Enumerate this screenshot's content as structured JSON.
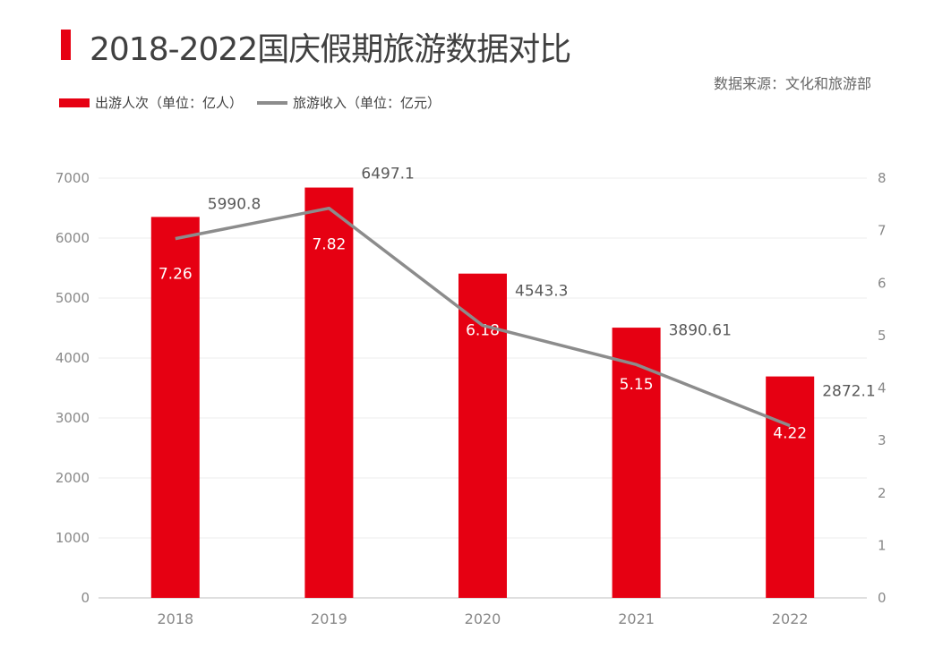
{
  "chart_data": {
    "type": "bar+line",
    "title": "2018-2022国庆假期旅游数据对比",
    "source": "数据来源：文化和旅游部",
    "categories": [
      "2018",
      "2019",
      "2020",
      "2021",
      "2022"
    ],
    "series": [
      {
        "name": "出游人次（单位：亿人）",
        "type": "bar",
        "axis": "right",
        "color": "#e60012",
        "values": [
          7.26,
          7.82,
          6.18,
          5.15,
          4.22
        ],
        "labels": [
          "7.26",
          "7.82",
          "6.18",
          "5.15",
          "4.22"
        ]
      },
      {
        "name": "旅游收入（单位：亿元）",
        "type": "line",
        "axis": "left",
        "color": "#8c8c8c",
        "values": [
          5990.8,
          6497.1,
          4543.3,
          3890.61,
          2872.1
        ],
        "labels": [
          "5990.8",
          "6497.1",
          "4543.3",
          "3890.61",
          "2872.1"
        ]
      }
    ],
    "left_axis": {
      "ylim": [
        0,
        7000
      ],
      "ticks": [
        "0",
        "1000",
        "2000",
        "3000",
        "4000",
        "5000",
        "6000",
        "7000"
      ]
    },
    "right_axis": {
      "ylim": [
        0,
        8
      ],
      "ticks": [
        "0",
        "1",
        "2",
        "3",
        "4",
        "5",
        "6",
        "7",
        "8"
      ]
    },
    "grid": true,
    "legend_position": "top-left"
  }
}
